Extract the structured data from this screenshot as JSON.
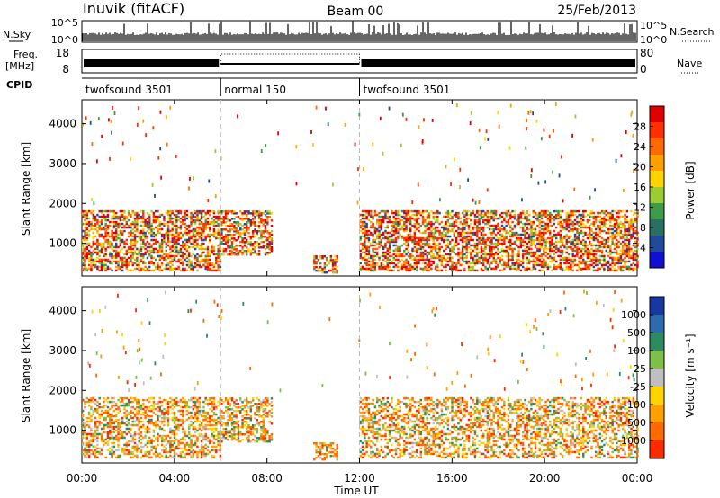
{
  "chart_data": {
    "type": "heatmap",
    "header": {
      "station": "Inuvik (fitACF)",
      "beam": "Beam 00",
      "date": "25/Feb/2013"
    },
    "panels": {
      "nsky": {
        "left_label": "N.Sky",
        "right_label": "N.Search",
        "left_ticks": [
          "10^5",
          "10^0"
        ],
        "right_ticks": [
          "10^5",
          "10^0"
        ]
      },
      "freq": {
        "left_label_1": "Freq.",
        "left_label_2": "[MHz]",
        "left_ticks": [
          "18",
          "8"
        ],
        "right_label": "Nave",
        "right_ticks": [
          "80",
          "0"
        ]
      },
      "cpid": {
        "label": "CPID",
        "segments": [
          {
            "label": "twofsound 3501",
            "start_h": 0,
            "end_h": 6
          },
          {
            "label": "normal 150",
            "start_h": 6,
            "end_h": 12
          },
          {
            "label": "twofsound 3501",
            "start_h": 12,
            "end_h": 24
          }
        ]
      },
      "power": {
        "ylabel": "Slant Range [km]",
        "cbar_label": "Power [dB]",
        "cbar_ticks": [
          "28",
          "24",
          "20",
          "16",
          "12",
          "8",
          "4"
        ],
        "cbar_colors": [
          "#e00000",
          "#ff3000",
          "#ff6a00",
          "#ff9f00",
          "#ffd400",
          "#9ccc33",
          "#3f9a4a",
          "#2a7060",
          "#224a9a",
          "#1010d0"
        ]
      },
      "velocity": {
        "ylabel": "Slant Range [km]",
        "cbar_label": "Velocity [m s⁻¹]",
        "cbar_ticks": [
          "1000",
          "500",
          "100",
          "25",
          "-25",
          "-100",
          "-500",
          "-1000"
        ],
        "cbar_colors": [
          "#1838a0",
          "#2e6ab0",
          "#2e8a60",
          "#7cc04a",
          "#bfbfbf",
          "#ffd400",
          "#ff9f00",
          "#ff6a00",
          "#ff2a00"
        ]
      }
    },
    "x_axis": {
      "label": "Time UT",
      "ticks": [
        "00:00",
        "04:00",
        "08:00",
        "12:00",
        "16:00",
        "20:00",
        "00:00"
      ],
      "range_hours": [
        0,
        24
      ]
    },
    "y_axis": {
      "ticks": [
        "1000",
        "2000",
        "3000",
        "4000"
      ],
      "range_km": [
        180,
        4600
      ]
    },
    "mode_change_hours": [
      6,
      12
    ],
    "scatter_regions": [
      {
        "start_h": 0.0,
        "end_h": 6.0,
        "low_km": 300,
        "high_km": 1800
      },
      {
        "start_h": 6.0,
        "end_h": 8.2,
        "low_km": 700,
        "high_km": 1800
      },
      {
        "start_h": 10.0,
        "end_h": 11.0,
        "low_km": 250,
        "high_km": 700
      },
      {
        "start_h": 12.0,
        "end_h": 24.0,
        "low_km": 300,
        "high_km": 1800
      }
    ]
  }
}
